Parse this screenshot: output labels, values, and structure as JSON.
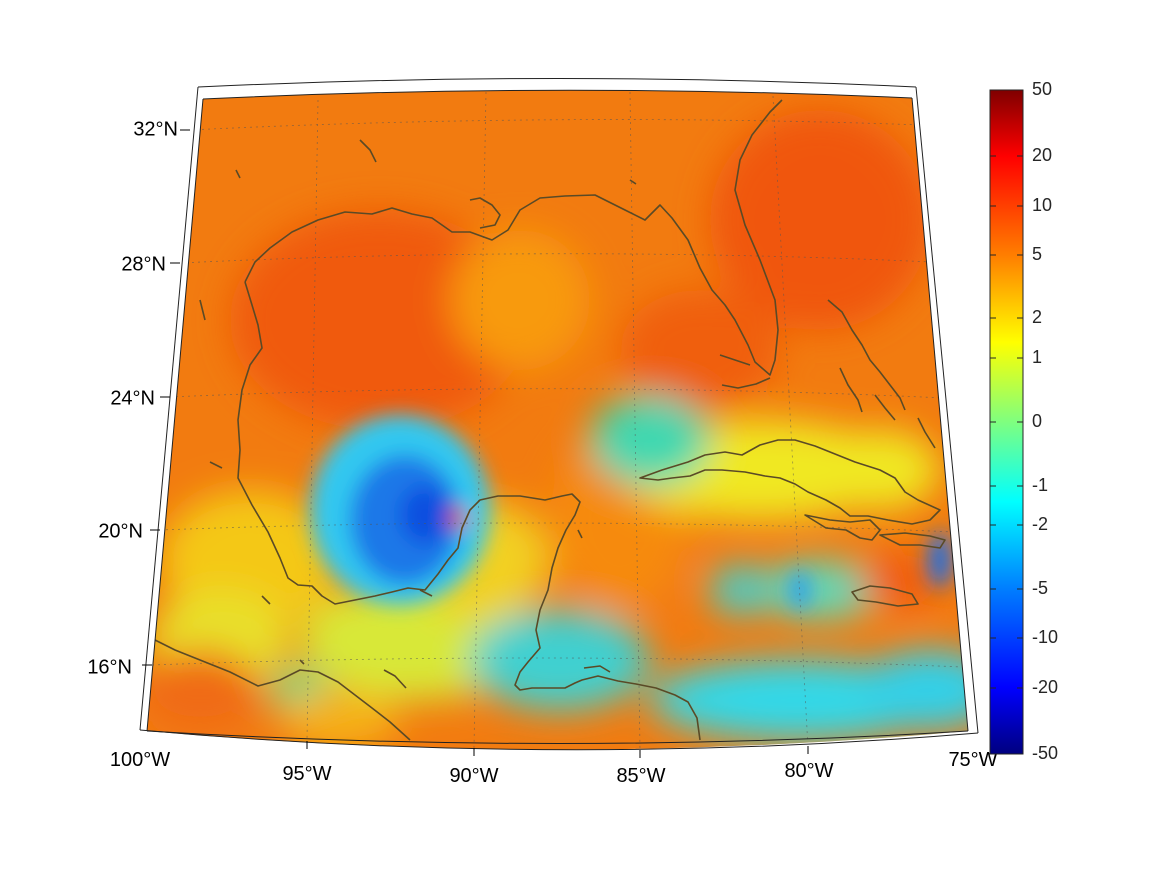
{
  "map": {
    "longitude_labels": [
      "100°W",
      "95°W",
      "90°W",
      "85°W",
      "80°W",
      "75°W"
    ],
    "latitude_labels": [
      "32°N",
      "28°N",
      "24°N",
      "20°N",
      "16°N"
    ],
    "coastline_color": "#5a4a26",
    "background_color": "#f07a12"
  },
  "colorbar": {
    "tick_labels": [
      "50",
      "20",
      "10",
      "5",
      "2",
      "1",
      "0",
      "-1",
      "-2",
      "-5",
      "-10",
      "-20",
      "-50"
    ],
    "colors": [
      "#800000",
      "#ff0000",
      "#ff8000",
      "#ffff00",
      "#80ff80",
      "#00ffff",
      "#0080ff",
      "#0000ff",
      "#000080"
    ]
  }
}
